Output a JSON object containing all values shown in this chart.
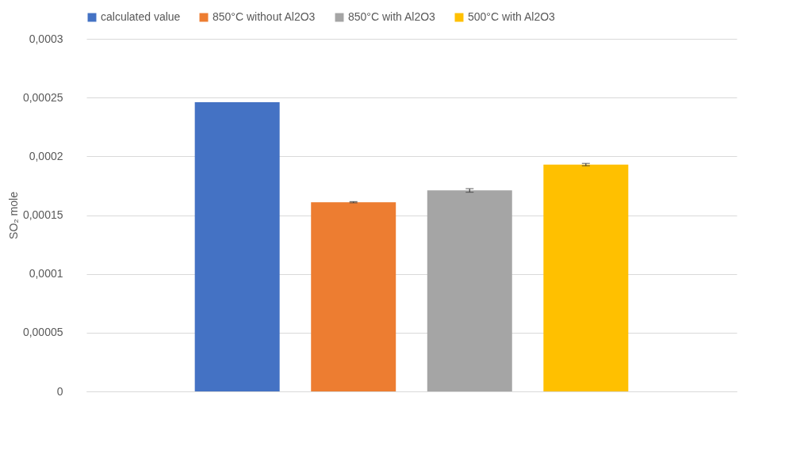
{
  "chart_data": {
    "type": "bar",
    "ylabel": "SO₂ mole",
    "categories": [
      null
    ],
    "series": [
      {
        "name": "calculated value",
        "color": "#4472c4",
        "values": [
          0.000246
        ]
      },
      {
        "name": "850°C without Al2O3",
        "color": "#ed7d31",
        "values": [
          0.000161
        ],
        "errors": [
          5e-07
        ]
      },
      {
        "name": "850°C with Al2O3",
        "color": "#a5a5a5",
        "values": [
          0.000171
        ],
        "errors": [
          1.5e-06
        ]
      },
      {
        "name": "500°C with Al2O3",
        "color": "#ffc000",
        "values": [
          0.000193
        ],
        "errors": [
          1e-06
        ]
      }
    ],
    "ylim": [
      0,
      0.0003
    ],
    "yticks": [
      0,
      {
        "value": 5e-05,
        "label": "0,00005"
      },
      {
        "value": 0.0001,
        "label": "0,0001"
      },
      {
        "value": 0.00015,
        "label": "0,00015"
      },
      {
        "value": 0.0002,
        "label": "0,0002"
      },
      {
        "value": 0.00025,
        "label": "0,00025"
      },
      {
        "value": 0.0003,
        "label": "0,0003"
      }
    ],
    "grid": "y",
    "legend": "top"
  }
}
